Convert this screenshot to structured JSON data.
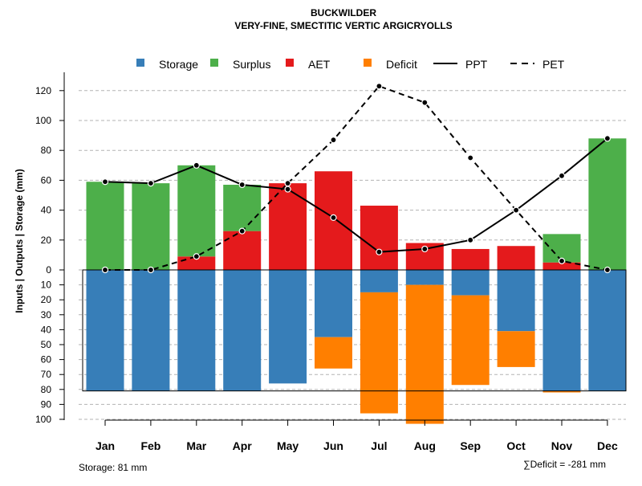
{
  "title": "BUCKWILDER",
  "subtitle": "VERY-FINE, SMECTITIC VERTIC ARGICRYOLLS",
  "footer": {
    "storage_note": "Storage: 81 mm",
    "deficit_note": "∑Deficit = -281 mm"
  },
  "colors": {
    "storage": "#377eb8",
    "surplus": "#4daf4a",
    "aet": "#e41a1c",
    "deficit": "#ff7f00",
    "grid": "#b3b3b3",
    "line": "#000000"
  },
  "chart_data": {
    "type": "bar",
    "title": "BUCKWILDER",
    "subtitle": "VERY-FINE, SMECTITIC VERTIC ARGICRYOLLS",
    "xlabel": "",
    "ylabel": "Inputs | Outputs | Storage    (mm)",
    "categories": [
      "Jan",
      "Feb",
      "Mar",
      "Apr",
      "May",
      "Jun",
      "Jul",
      "Aug",
      "Sep",
      "Oct",
      "Nov",
      "Dec"
    ],
    "ylim_positive": [
      0,
      130
    ],
    "ylim_negative": [
      0,
      100
    ],
    "y_ticks_positive": [
      "0",
      "20",
      "40",
      "60",
      "80",
      "100",
      "120"
    ],
    "y_ticks_negative": [
      "10",
      "20",
      "30",
      "40",
      "50",
      "60",
      "70",
      "80",
      "90",
      "100"
    ],
    "grid": true,
    "legend_position": "top",
    "legend": [
      {
        "key": "storage",
        "label": "Storage",
        "kind": "box"
      },
      {
        "key": "surplus",
        "label": "Surplus",
        "kind": "box"
      },
      {
        "key": "aet",
        "label": "AET",
        "kind": "box"
      },
      {
        "key": "deficit",
        "label": "Deficit",
        "kind": "box"
      },
      {
        "key": "ppt",
        "label": "PPT",
        "kind": "solid"
      },
      {
        "key": "pet",
        "label": "PET",
        "kind": "dashed"
      }
    ],
    "series": [
      {
        "name": "AET",
        "key": "aet",
        "values": [
          0,
          0,
          9,
          26,
          58,
          66,
          43,
          18,
          14,
          16,
          5,
          0
        ]
      },
      {
        "name": "Surplus",
        "key": "surplus",
        "values": [
          59,
          58,
          61,
          31,
          0,
          0,
          0,
          0,
          0,
          0,
          19,
          88
        ]
      },
      {
        "name": "Storage",
        "key": "storage",
        "values": [
          81,
          81,
          81,
          81,
          76,
          45,
          15,
          10,
          17,
          41,
          81,
          81
        ]
      },
      {
        "name": "Deficit",
        "key": "deficit",
        "values": [
          0,
          0,
          0,
          0,
          0,
          21,
          81,
          93,
          60,
          24,
          1,
          0
        ]
      },
      {
        "name": "PPT",
        "key": "ppt",
        "values": [
          59,
          58,
          70,
          57,
          54,
          35,
          12,
          14,
          20,
          40,
          63,
          88
        ]
      },
      {
        "name": "PET",
        "key": "pet",
        "values": [
          0,
          0,
          9,
          26,
          58,
          87,
          123,
          112,
          75,
          40,
          6,
          0
        ]
      }
    ],
    "storage_capacity": 81
  }
}
